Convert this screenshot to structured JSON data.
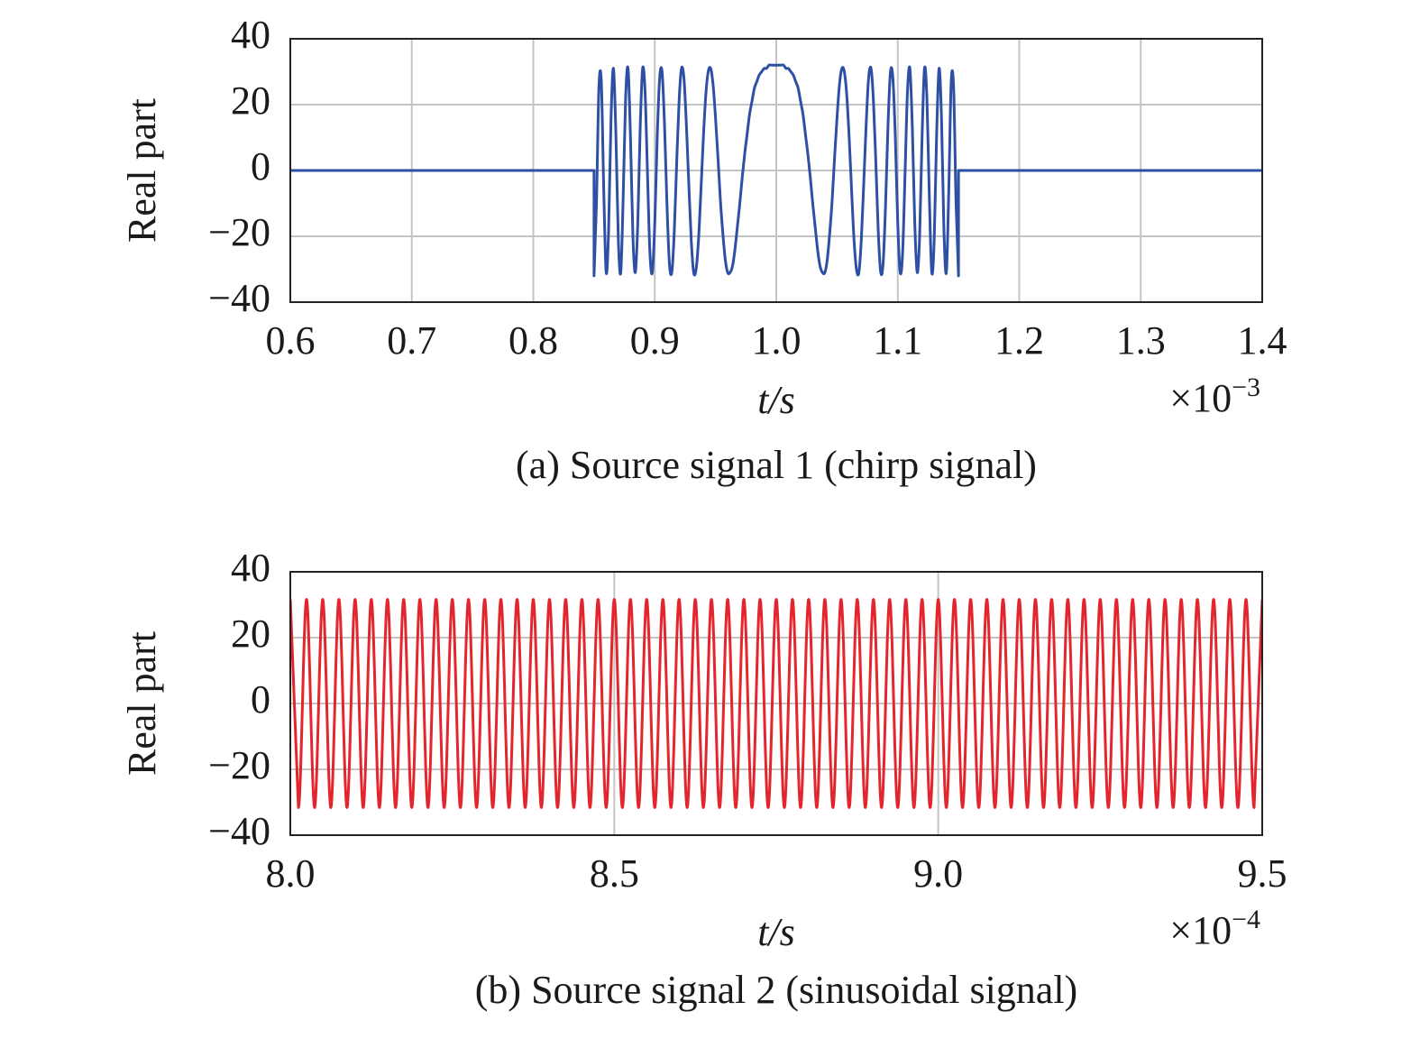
{
  "chart_data": [
    {
      "type": "line",
      "caption": "(a) Source signal 1 (chirp signal)",
      "y_label": "Real part",
      "x_label": "t/s",
      "x_multiplier": {
        "base": "×10",
        "exponent": "−3"
      },
      "xlim": [
        0.6,
        1.4
      ],
      "xticks": [
        0.6,
        0.7,
        0.8,
        0.9,
        {
          "value": 1,
          "label": "1.0"
        },
        1.1,
        1.2,
        1.3,
        1.4
      ],
      "ylim": [
        -40,
        40
      ],
      "yticks": [
        40,
        20,
        0,
        {
          "value": -20,
          "label": "−20"
        },
        {
          "value": -40,
          "label": "−40"
        }
      ],
      "grid": true,
      "x": [
        0.6,
        0.85,
        0.85,
        0.852,
        0.854,
        0.856,
        0.858,
        0.86,
        0.862,
        0.864,
        0.866,
        0.868,
        0.87,
        0.872,
        0.874,
        0.876,
        0.878,
        0.88,
        0.882,
        0.884,
        0.886,
        0.888,
        0.89,
        0.892,
        0.894,
        0.896,
        0.898,
        0.9,
        0.902,
        0.904,
        0.906,
        0.908,
        0.91,
        0.912,
        0.914,
        0.916,
        0.918,
        0.92,
        0.922,
        0.924,
        0.926,
        0.928,
        0.93,
        0.932,
        0.934,
        0.936,
        0.938,
        0.94,
        0.942,
        0.944,
        0.946,
        0.948,
        0.95,
        0.952,
        0.954,
        0.956,
        0.958,
        0.96,
        0.962,
        0.964,
        0.966,
        0.968,
        0.97,
        0.972,
        0.974,
        0.976,
        0.978,
        0.98,
        0.982,
        0.984,
        0.986,
        0.988,
        0.99,
        0.992,
        0.994,
        0.996,
        0.998,
        1,
        1.002,
        1.004,
        1.006,
        1.008,
        1.01,
        1.012,
        1.014,
        1.016,
        1.018,
        1.02,
        1.022,
        1.024,
        1.026,
        1.028,
        1.03,
        1.032,
        1.034,
        1.036,
        1.038,
        1.04,
        1.042,
        1.044,
        1.046,
        1.048,
        1.05,
        1.052,
        1.054,
        1.056,
        1.058,
        1.06,
        1.062,
        1.064,
        1.066,
        1.068,
        1.07,
        1.072,
        1.074,
        1.076,
        1.078,
        1.08,
        1.082,
        1.084,
        1.086,
        1.088,
        1.09,
        1.092,
        1.094,
        1.096,
        1.098,
        1.1,
        1.102,
        1.104,
        1.106,
        1.108,
        1.11,
        1.112,
        1.114,
        1.116,
        1.118,
        1.12,
        1.122,
        1.124,
        1.126,
        1.128,
        1.13,
        1.132,
        1.134,
        1.136,
        1.138,
        1.14,
        1.142,
        1.144,
        1.146,
        1.148,
        1.15,
        1.15,
        1.4
      ],
      "series": [
        {
          "color": "#2e4fa3",
          "values": [
            0,
            0,
            -32,
            -10,
            25,
            27,
            -6,
            -31,
            -18,
            16,
            31,
            11,
            -21,
            -31,
            -8,
            22,
            31,
            10,
            -20,
            -31,
            -16,
            13,
            31,
            24,
            -1,
            -25,
            -31,
            -16,
            10,
            28,
            30,
            14,
            -10,
            -28,
            -31,
            -19,
            2,
            21,
            31,
            28,
            14,
            -4,
            -21,
            -31,
            -30,
            -21,
            -6,
            10,
            23,
            30,
            31,
            26,
            16,
            4,
            -9,
            -19,
            -27,
            -31,
            -31,
            -29,
            -24,
            -17,
            -10,
            -2,
            5,
            11,
            17,
            21,
            25,
            27,
            29,
            30,
            31,
            31,
            32,
            32,
            32,
            32,
            32,
            32,
            32,
            31,
            31,
            30,
            29,
            27,
            25,
            21,
            17,
            11,
            5,
            -2,
            -10,
            -17,
            -24,
            -29,
            -31,
            -31,
            -27,
            -19,
            -9,
            4,
            16,
            26,
            31,
            30,
            23,
            10,
            -6,
            -21,
            -30,
            -31,
            -21,
            -4,
            14,
            28,
            31,
            21,
            2,
            -19,
            -31,
            -28,
            -10,
            14,
            30,
            28,
            10,
            -16,
            -31,
            -25,
            -1,
            24,
            31,
            13,
            -16,
            -31,
            -20,
            10,
            31,
            22,
            -8,
            -31,
            -21,
            11,
            31,
            16,
            -18,
            -31,
            -6,
            27,
            25,
            -10,
            -32,
            0,
            0
          ]
        }
      ]
    },
    {
      "type": "line",
      "caption": "(b) Source signal 2 (sinusoidal signal)",
      "y_label": "Real part",
      "x_label": "t/s",
      "x_multiplier": {
        "base": "×10",
        "exponent": "−4"
      },
      "xlim": [
        8,
        9.5
      ],
      "xticks": [
        {
          "value": 8,
          "label": "8.0"
        },
        8.5,
        {
          "value": 9,
          "label": "9.0"
        },
        9.5
      ],
      "ylim": [
        -40,
        40
      ],
      "yticks": [
        40,
        20,
        0,
        {
          "value": -20,
          "label": "−20"
        },
        {
          "value": -40,
          "label": "−40"
        }
      ],
      "grid": true,
      "x": [
        8,
        8.0125,
        8.025,
        8.0375,
        8.05,
        8.0625,
        8.075,
        8.0875,
        8.1,
        8.1125,
        8.125,
        8.1375,
        8.15,
        8.1625,
        8.175,
        8.1875,
        8.2,
        8.2125,
        8.225,
        8.2375,
        8.25,
        8.2625,
        8.275,
        8.2875,
        8.3,
        8.3125,
        8.325,
        8.3375,
        8.35,
        8.3625,
        8.375,
        8.3875,
        8.4,
        8.4125,
        8.425,
        8.4375,
        8.45,
        8.4625,
        8.475,
        8.4875,
        8.5,
        8.5125,
        8.525,
        8.5375,
        8.55,
        8.5625,
        8.575,
        8.5875,
        8.6,
        8.6125,
        8.625,
        8.6375,
        8.65,
        8.6625,
        8.675,
        8.6875,
        8.7,
        8.7125,
        8.725,
        8.7375,
        8.75,
        8.7625,
        8.775,
        8.7875,
        8.8,
        8.8125,
        8.825,
        8.8375,
        8.85,
        8.8625,
        8.875,
        8.8875,
        8.9,
        8.9125,
        8.925,
        8.9375,
        8.95,
        8.9625,
        8.975,
        8.9875,
        9,
        9.0125,
        9.025,
        9.0375,
        9.05,
        9.0625,
        9.075,
        9.0875,
        9.1,
        9.1125,
        9.125,
        9.1375,
        9.15,
        9.1625,
        9.175,
        9.1875,
        9.2,
        9.2125,
        9.225,
        9.2375,
        9.25,
        9.2625,
        9.275,
        9.2875,
        9.3,
        9.3125,
        9.325,
        9.3375,
        9.35,
        9.3625,
        9.375,
        9.3875,
        9.4,
        9.4125,
        9.425,
        9.4375,
        9.45,
        9.4625,
        9.475,
        9.4875,
        9.5
      ],
      "series": [
        {
          "color": "#e3262d",
          "values": [
            31.6,
            -31.6,
            31.6,
            -31.6,
            31.6,
            -31.6,
            31.6,
            -31.6,
            31.6,
            -31.6,
            31.6,
            -31.6,
            31.6,
            -31.6,
            31.6,
            -31.6,
            31.6,
            -31.6,
            31.6,
            -31.6,
            31.6,
            -31.6,
            31.6,
            -31.6,
            31.6,
            -31.6,
            31.6,
            -31.6,
            31.6,
            -31.6,
            31.6,
            -31.6,
            31.6,
            -31.6,
            31.6,
            -31.6,
            31.6,
            -31.6,
            31.6,
            -31.6,
            31.6,
            -31.6,
            31.6,
            -31.6,
            31.6,
            -31.6,
            31.6,
            -31.6,
            31.6,
            -31.6,
            31.6,
            -31.6,
            31.6,
            -31.6,
            31.6,
            -31.6,
            31.6,
            -31.6,
            31.6,
            -31.6,
            31.6,
            -31.6,
            31.6,
            -31.6,
            31.6,
            -31.6,
            31.6,
            -31.6,
            31.6,
            -31.6,
            31.6,
            -31.6,
            31.6,
            -31.6,
            31.6,
            -31.6,
            31.6,
            -31.6,
            31.6,
            -31.6,
            31.6,
            -31.6,
            31.6,
            -31.6,
            31.6,
            -31.6,
            31.6,
            -31.6,
            31.6,
            -31.6,
            31.6,
            -31.6,
            31.6,
            -31.6,
            31.6,
            -31.6,
            31.6,
            -31.6,
            31.6,
            -31.6,
            31.6,
            -31.6,
            31.6,
            -31.6,
            31.6,
            -31.6,
            31.6,
            -31.6,
            31.6,
            -31.6,
            31.6,
            -31.6,
            31.6,
            -31.6,
            31.6,
            -31.6,
            31.6,
            -31.6,
            31.6,
            -31.6,
            31.6
          ]
        }
      ]
    }
  ]
}
